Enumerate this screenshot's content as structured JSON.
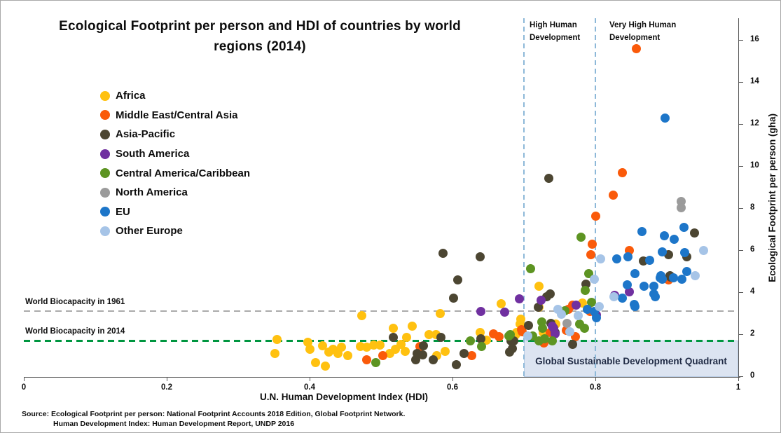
{
  "title": "Ecological Footprint per person and HDI of countries by world regions (2014)",
  "source": {
    "line1": "Source: Ecological Footprint per person: National Footprint Accounts 2018 Edition, Global Footprint Network.",
    "line2": "Human Development Index: Human Development Report, UNDP 2016"
  },
  "chart_data": {
    "type": "scatter",
    "title": "Ecological Footprint per person and HDI of countries by world regions (2014)",
    "xlabel": "U.N. Human Development Index (HDI)",
    "ylabel": "Ecological Footprint per person (gha)",
    "xlim": [
      0,
      1
    ],
    "ylim": [
      0,
      16
    ],
    "x_ticks": [
      "0",
      "0.2",
      "0.4",
      "0.6",
      "0.8",
      "1"
    ],
    "x_tick_values": [
      0,
      0.2,
      0.4,
      0.6,
      0.8,
      1
    ],
    "y_ticks": [
      "0",
      "2",
      "4",
      "6",
      "8",
      "10",
      "12",
      "14",
      "16"
    ],
    "y_tick_values": [
      0,
      2,
      4,
      6,
      8,
      10,
      12,
      14,
      16
    ],
    "grid": false,
    "legend_position": "upper-left",
    "reference_lines": {
      "horizontal": [
        {
          "label": "World Biocapacity in 1961",
          "value": 3.1,
          "color": "#ababab",
          "style": "dashed"
        },
        {
          "label": "World Biocapacity in 2014",
          "value": 1.7,
          "color": "#009640",
          "style": "dashed"
        }
      ],
      "vertical": [
        {
          "label": "High Human Development",
          "value": 0.7,
          "color": "#8db8d8",
          "style": "dashed"
        },
        {
          "label": "Very High Human Development",
          "value": 0.8,
          "color": "#8db8d8",
          "style": "dashed"
        }
      ]
    },
    "quadrant": {
      "label": "Global Sustainable Development Quadrant",
      "x_range": [
        0.7,
        1.0
      ],
      "y_range": [
        0,
        1.7
      ],
      "fill": "#dce4f1"
    },
    "series": [
      {
        "name": "Africa",
        "color": "#ffc110",
        "points": [
          [
            0.351,
            1.1
          ],
          [
            0.354,
            1.75
          ],
          [
            0.398,
            1.63
          ],
          [
            0.4,
            1.3
          ],
          [
            0.408,
            0.65
          ],
          [
            0.418,
            1.45
          ],
          [
            0.422,
            0.48
          ],
          [
            0.427,
            1.15
          ],
          [
            0.433,
            1.27
          ],
          [
            0.44,
            1.1
          ],
          [
            0.445,
            1.37
          ],
          [
            0.453,
            0.97
          ],
          [
            0.471,
            1.43
          ],
          [
            0.473,
            2.9
          ],
          [
            0.48,
            1.37
          ],
          [
            0.49,
            1.47
          ],
          [
            0.499,
            1.5
          ],
          [
            0.512,
            1.1
          ],
          [
            0.517,
            2.27
          ],
          [
            0.52,
            1.27
          ],
          [
            0.528,
            1.53
          ],
          [
            0.534,
            1.2
          ],
          [
            0.536,
            1.85
          ],
          [
            0.544,
            2.4
          ],
          [
            0.567,
            1.97
          ],
          [
            0.577,
            2.0
          ],
          [
            0.578,
            1.0
          ],
          [
            0.583,
            2.97
          ],
          [
            0.59,
            1.17
          ],
          [
            0.639,
            2.1
          ],
          [
            0.648,
            1.73
          ],
          [
            0.668,
            3.45
          ],
          [
            0.689,
            2.0
          ],
          [
            0.69,
            2.1
          ],
          [
            0.695,
            2.47
          ],
          [
            0.696,
            2.73
          ],
          [
            0.721,
            4.3
          ],
          [
            0.721,
            3.27
          ],
          [
            0.727,
            2.1
          ],
          [
            0.738,
            2.07
          ],
          [
            0.745,
            2.5
          ],
          [
            0.782,
            3.47
          ]
        ]
      },
      {
        "name": "Middle East/Central Asia",
        "color": "#fa5a0a",
        "points": [
          [
            0.48,
            0.77
          ],
          [
            0.502,
            0.97
          ],
          [
            0.554,
            1.43
          ],
          [
            0.627,
            0.97
          ],
          [
            0.657,
            2.03
          ],
          [
            0.665,
            1.87
          ],
          [
            0.697,
            2.23
          ],
          [
            0.698,
            2.13
          ],
          [
            0.728,
            1.57
          ],
          [
            0.737,
            2.1
          ],
          [
            0.759,
            2.18
          ],
          [
            0.772,
            1.9
          ],
          [
            0.762,
            3.17
          ],
          [
            0.768,
            3.4
          ],
          [
            0.793,
            3.1
          ],
          [
            0.794,
            5.8
          ],
          [
            0.796,
            6.3
          ],
          [
            0.8,
            7.63
          ],
          [
            0.825,
            8.63
          ],
          [
            0.838,
            9.7
          ],
          [
            0.848,
            6.0
          ],
          [
            0.857,
            15.57
          ],
          [
            0.902,
            4.6
          ]
        ]
      },
      {
        "name": "Asia-Pacific",
        "color": "#4c4632",
        "points": [
          [
            0.517,
            1.85
          ],
          [
            0.549,
            0.78
          ],
          [
            0.55,
            1.1
          ],
          [
            0.558,
            1.03
          ],
          [
            0.559,
            1.45
          ],
          [
            0.573,
            0.77
          ],
          [
            0.584,
            1.85
          ],
          [
            0.587,
            5.85
          ],
          [
            0.601,
            3.73
          ],
          [
            0.605,
            0.55
          ],
          [
            0.607,
            4.6
          ],
          [
            0.616,
            1.1
          ],
          [
            0.639,
            5.67
          ],
          [
            0.64,
            1.77
          ],
          [
            0.68,
            1.15
          ],
          [
            0.682,
            1.7
          ],
          [
            0.684,
            1.32
          ],
          [
            0.686,
            1.7
          ],
          [
            0.706,
            2.43
          ],
          [
            0.72,
            3.3
          ],
          [
            0.732,
            3.8
          ],
          [
            0.735,
            9.43
          ],
          [
            0.737,
            3.92
          ],
          [
            0.738,
            2.53
          ],
          [
            0.744,
            2.1
          ],
          [
            0.768,
            1.52
          ],
          [
            0.787,
            4.4
          ],
          [
            0.867,
            5.5
          ],
          [
            0.902,
            5.77
          ],
          [
            0.904,
            4.77
          ],
          [
            0.905,
            4.73
          ],
          [
            0.928,
            5.7
          ],
          [
            0.939,
            6.83
          ]
        ]
      },
      {
        "name": "South America",
        "color": "#7030a0",
        "points": [
          [
            0.64,
            3.1
          ],
          [
            0.673,
            3.05
          ],
          [
            0.694,
            3.68
          ],
          [
            0.724,
            3.62
          ],
          [
            0.74,
            2.37
          ],
          [
            0.742,
            2.27
          ],
          [
            0.744,
            2.03
          ],
          [
            0.773,
            3.37
          ],
          [
            0.801,
            2.93
          ],
          [
            0.827,
            3.85
          ],
          [
            0.848,
            4.03
          ]
        ]
      },
      {
        "name": "Central America/Caribbean",
        "color": "#5d9422",
        "points": [
          [
            0.493,
            0.65
          ],
          [
            0.625,
            1.67
          ],
          [
            0.641,
            1.43
          ],
          [
            0.679,
            1.93
          ],
          [
            0.681,
            2.0
          ],
          [
            0.709,
            5.13
          ],
          [
            0.712,
            1.93
          ],
          [
            0.721,
            1.67
          ],
          [
            0.725,
            2.6
          ],
          [
            0.726,
            2.27
          ],
          [
            0.729,
            1.77
          ],
          [
            0.74,
            1.7
          ],
          [
            0.757,
            3.13
          ],
          [
            0.778,
            2.5
          ],
          [
            0.78,
            6.63
          ],
          [
            0.785,
            2.3
          ],
          [
            0.786,
            4.1
          ],
          [
            0.791,
            4.87
          ],
          [
            0.795,
            3.53
          ]
        ]
      },
      {
        "name": "North America",
        "color": "#9b9b9b",
        "points": [
          [
            0.76,
            2.53
          ],
          [
            0.92,
            8.33
          ],
          [
            0.92,
            8.03
          ]
        ]
      },
      {
        "name": "EU",
        "color": "#1d76c9",
        "points": [
          [
            0.789,
            3.2
          ],
          [
            0.799,
            3.1
          ],
          [
            0.801,
            2.77
          ],
          [
            0.83,
            5.6
          ],
          [
            0.838,
            3.72
          ],
          [
            0.845,
            4.35
          ],
          [
            0.846,
            5.7
          ],
          [
            0.854,
            3.43
          ],
          [
            0.855,
            3.33
          ],
          [
            0.855,
            4.87
          ],
          [
            0.865,
            6.9
          ],
          [
            0.868,
            4.27
          ],
          [
            0.876,
            5.53
          ],
          [
            0.882,
            3.93
          ],
          [
            0.882,
            4.3
          ],
          [
            0.884,
            3.8
          ],
          [
            0.891,
            4.7
          ],
          [
            0.892,
            4.77
          ],
          [
            0.894,
            4.63
          ],
          [
            0.894,
            5.93
          ],
          [
            0.897,
            6.67
          ],
          [
            0.898,
            12.28
          ],
          [
            0.909,
            4.67
          ],
          [
            0.91,
            6.53
          ],
          [
            0.921,
            4.63
          ],
          [
            0.924,
            7.07
          ],
          [
            0.925,
            5.87
          ],
          [
            0.928,
            5.0
          ]
        ]
      },
      {
        "name": "Other Europe",
        "color": "#a6c4e7",
        "points": [
          [
            0.705,
            1.92
          ],
          [
            0.748,
            3.2
          ],
          [
            0.752,
            2.95
          ],
          [
            0.764,
            2.13
          ],
          [
            0.776,
            2.87
          ],
          [
            0.799,
            4.63
          ],
          [
            0.805,
            3.33
          ],
          [
            0.807,
            5.57
          ],
          [
            0.826,
            3.79
          ],
          [
            0.94,
            4.8
          ],
          [
            0.951,
            5.97
          ]
        ]
      }
    ]
  }
}
